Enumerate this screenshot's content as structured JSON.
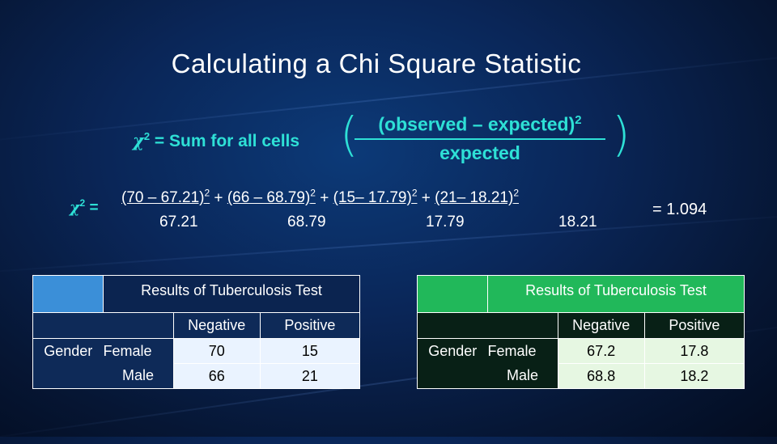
{
  "title": "Calculating a Chi Square Statistic",
  "formula": {
    "lhs_symbol": "χ",
    "lhs_exp": "2",
    "lhs_eq": " = ",
    "lhs_text": "Sum for all cells",
    "numerator": "(observed – expected)",
    "numerator_exp": "2",
    "denominator": "expected"
  },
  "calc": {
    "lhs_symbol": "χ",
    "lhs_exp": "2",
    "lhs_eq": " =",
    "terms": [
      {
        "num": "(70 – 67.21)",
        "exp": "2",
        "den": "67.21",
        "sep": " + "
      },
      {
        "num": "(66 – 68.79)",
        "exp": "2",
        "den": "68.79",
        "sep": " + "
      },
      {
        "num": "(15– 17.79)",
        "exp": "2",
        "den": "17.79",
        "sep": " + "
      },
      {
        "num": "(21– 18.21)",
        "exp": "2",
        "den": "18.21",
        "sep": ""
      }
    ],
    "result": "= 1.094"
  },
  "observed_table": {
    "caption": "Results of Tuberculosis Test",
    "columns": [
      "Negative",
      "Positive"
    ],
    "group_label": "Gender",
    "rows": [
      {
        "label": "Female",
        "values": [
          "70",
          "15"
        ]
      },
      {
        "label": "Male",
        "values": [
          "66",
          "21"
        ]
      }
    ]
  },
  "expected_table": {
    "caption": "Results of Tuberculosis Test",
    "columns": [
      "Negative",
      "Positive"
    ],
    "group_label": "Gender",
    "rows": [
      {
        "label": "Female",
        "values": [
          "67.2",
          "17.8"
        ]
      },
      {
        "label": "Male",
        "values": [
          "68.8",
          "18.2"
        ]
      }
    ]
  },
  "colors": {
    "accent": "#2ee0d6",
    "observed_header": "#3b8fd8",
    "expected_header": "#21b85a"
  }
}
